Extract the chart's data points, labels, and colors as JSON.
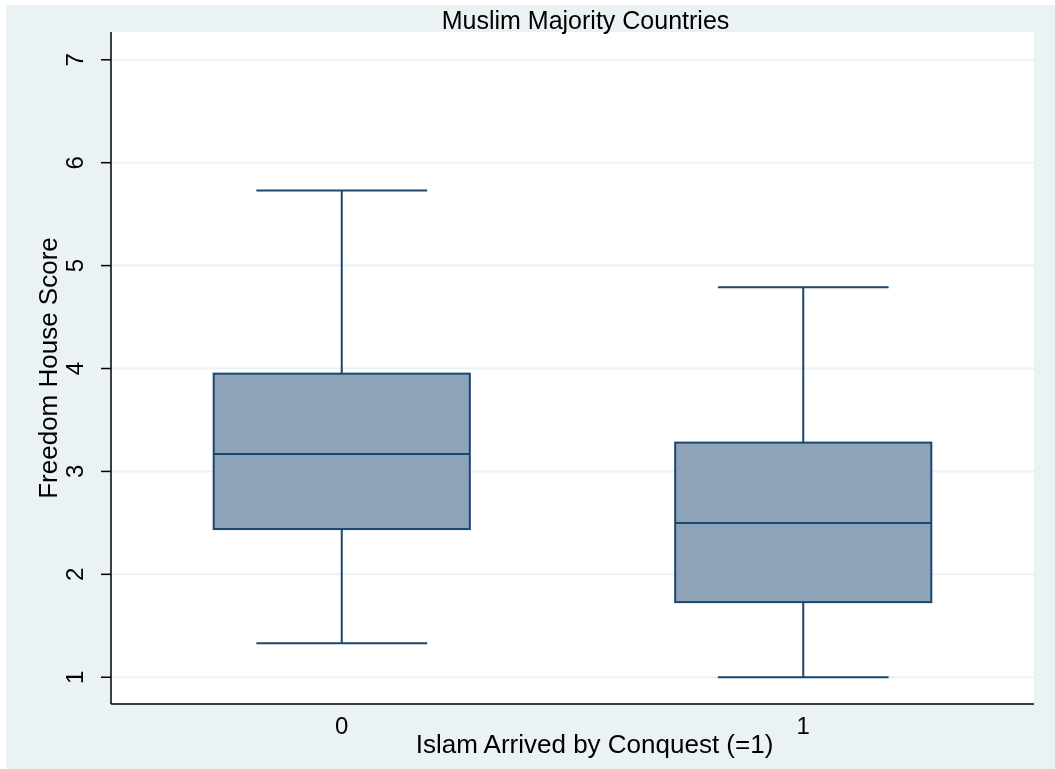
{
  "chart_data": {
    "type": "box",
    "title": "Muslim Majority Countries",
    "xlabel": "Islam Arrived by Conquest (=1)",
    "ylabel": "Freedom House Score",
    "categories": [
      "0",
      "1"
    ],
    "boxes": [
      {
        "low": 1.33,
        "q1": 2.44,
        "median": 3.17,
        "q3": 3.95,
        "high": 5.73
      },
      {
        "low": 1.0,
        "q1": 1.73,
        "median": 2.5,
        "q3": 3.28,
        "high": 4.79
      }
    ],
    "color": "#8da3b8",
    "ylim": [
      0.74,
      7.27
    ],
    "yticks": [
      1,
      2,
      3,
      4,
      5,
      6,
      7
    ],
    "grid": "y"
  }
}
